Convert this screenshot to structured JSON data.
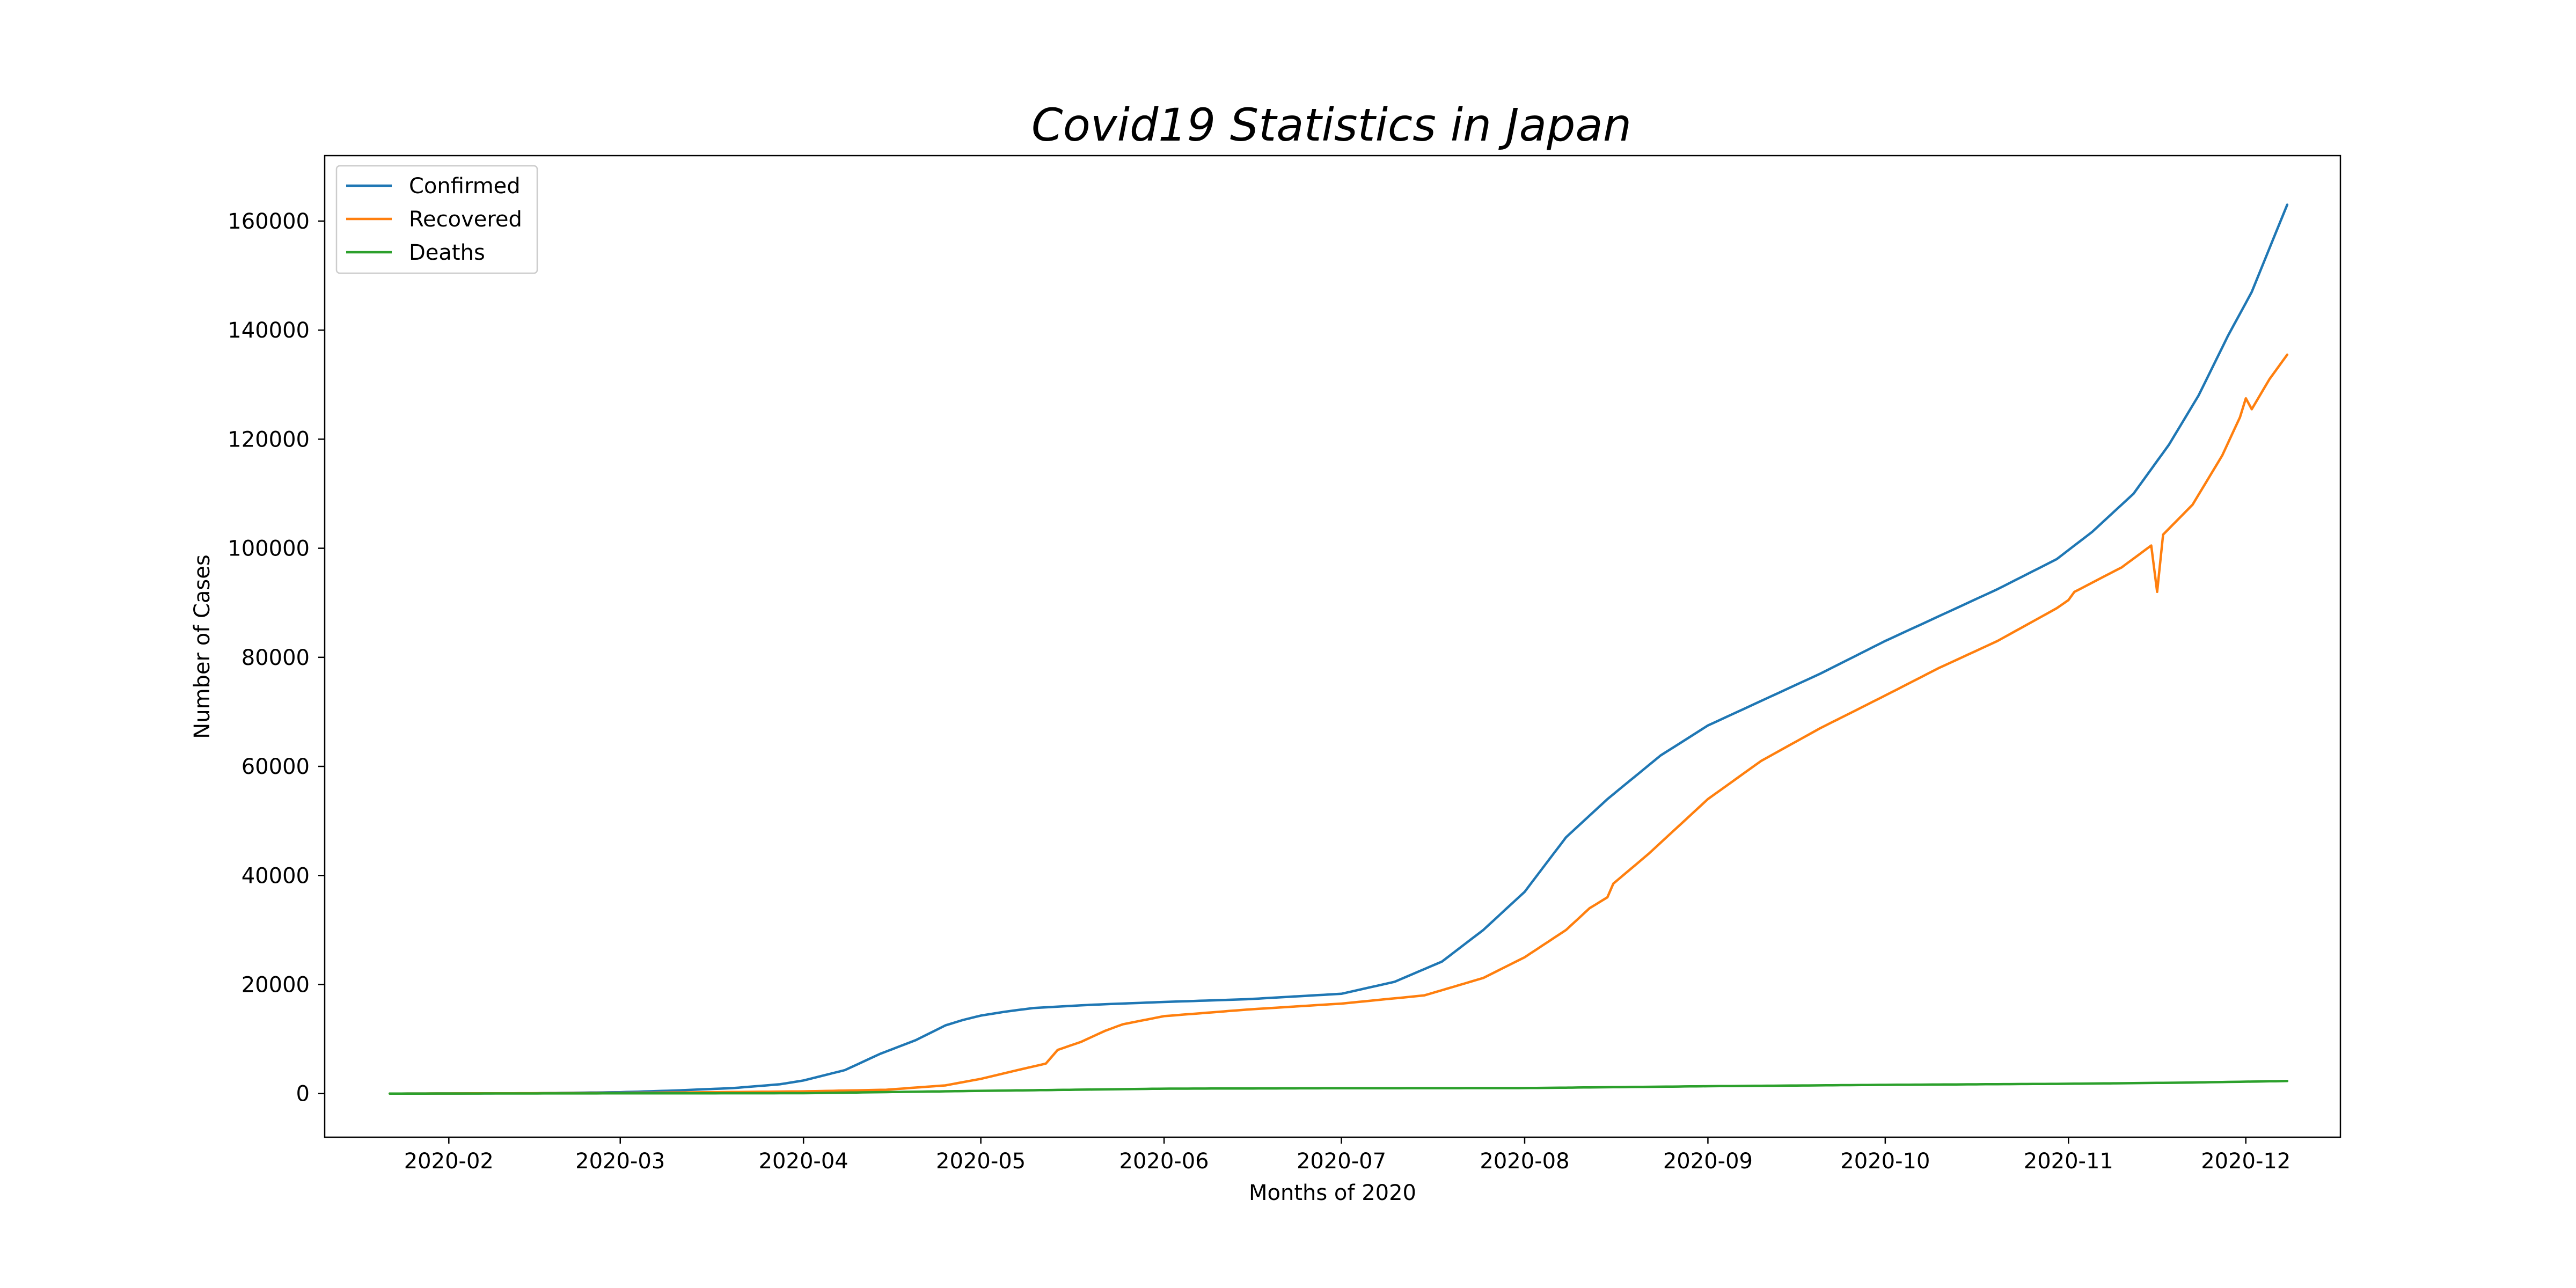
{
  "chart_data": {
    "type": "line",
    "title": "Covid19 Statistics in Japan",
    "xlabel": "Months of 2020",
    "ylabel": "Number of Cases",
    "xlim": [
      "2020-01-11",
      "2020-12-17"
    ],
    "ylim": [
      -8000,
      172000
    ],
    "x_ticks": [
      "2020-02",
      "2020-03",
      "2020-04",
      "2020-05",
      "2020-06",
      "2020-07",
      "2020-08",
      "2020-09",
      "2020-10",
      "2020-11",
      "2020-12"
    ],
    "y_ticks": [
      0,
      20000,
      40000,
      60000,
      80000,
      100000,
      120000,
      140000,
      160000
    ],
    "grid": false,
    "legend_position": "upper-left",
    "series": [
      {
        "name": "Confirmed",
        "color": "#1f77b4",
        "points": [
          [
            "2020-01-22",
            0
          ],
          [
            "2020-02-15",
            50
          ],
          [
            "2020-03-01",
            250
          ],
          [
            "2020-03-10",
            550
          ],
          [
            "2020-03-20",
            1000
          ],
          [
            "2020-03-28",
            1700
          ],
          [
            "2020-04-01",
            2400
          ],
          [
            "2020-04-08",
            4300
          ],
          [
            "2020-04-14",
            7300
          ],
          [
            "2020-04-20",
            9800
          ],
          [
            "2020-04-25",
            12500
          ],
          [
            "2020-04-28",
            13500
          ],
          [
            "2020-05-01",
            14300
          ],
          [
            "2020-05-05",
            15000
          ],
          [
            "2020-05-10",
            15700
          ],
          [
            "2020-05-20",
            16300
          ],
          [
            "2020-06-01",
            16800
          ],
          [
            "2020-06-15",
            17300
          ],
          [
            "2020-07-01",
            18300
          ],
          [
            "2020-07-10",
            20500
          ],
          [
            "2020-07-18",
            24200
          ],
          [
            "2020-07-25",
            30000
          ],
          [
            "2020-08-01",
            37000
          ],
          [
            "2020-08-08",
            47000
          ],
          [
            "2020-08-15",
            54000
          ],
          [
            "2020-08-24",
            62000
          ],
          [
            "2020-09-01",
            67500
          ],
          [
            "2020-09-10",
            72000
          ],
          [
            "2020-09-20",
            77000
          ],
          [
            "2020-10-01",
            83000
          ],
          [
            "2020-10-10",
            87500
          ],
          [
            "2020-10-20",
            92500
          ],
          [
            "2020-10-30",
            98000
          ],
          [
            "2020-11-05",
            103000
          ],
          [
            "2020-11-12",
            110000
          ],
          [
            "2020-11-18",
            119000
          ],
          [
            "2020-11-23",
            128000
          ],
          [
            "2020-11-28",
            139000
          ],
          [
            "2020-12-02",
            147000
          ],
          [
            "2020-12-05",
            155000
          ],
          [
            "2020-12-08",
            163000
          ]
        ]
      },
      {
        "name": "Recovered",
        "color": "#ff7f0e",
        "points": [
          [
            "2020-01-22",
            0
          ],
          [
            "2020-03-01",
            100
          ],
          [
            "2020-04-01",
            400
          ],
          [
            "2020-04-15",
            700
          ],
          [
            "2020-04-25",
            1500
          ],
          [
            "2020-05-01",
            2700
          ],
          [
            "2020-05-08",
            4500
          ],
          [
            "2020-05-12",
            5500
          ],
          [
            "2020-05-14",
            8000
          ],
          [
            "2020-05-18",
            9500
          ],
          [
            "2020-05-22",
            11500
          ],
          [
            "2020-05-25",
            12700
          ],
          [
            "2020-06-01",
            14200
          ],
          [
            "2020-06-15",
            15400
          ],
          [
            "2020-07-01",
            16500
          ],
          [
            "2020-07-15",
            18000
          ],
          [
            "2020-07-25",
            21200
          ],
          [
            "2020-08-01",
            25000
          ],
          [
            "2020-08-08",
            30000
          ],
          [
            "2020-08-12",
            34000
          ],
          [
            "2020-08-15",
            36000
          ],
          [
            "2020-08-16",
            38500
          ],
          [
            "2020-08-22",
            44000
          ],
          [
            "2020-09-01",
            54000
          ],
          [
            "2020-09-10",
            61000
          ],
          [
            "2020-09-20",
            67000
          ],
          [
            "2020-10-01",
            73000
          ],
          [
            "2020-10-10",
            78000
          ],
          [
            "2020-10-20",
            83000
          ],
          [
            "2020-10-30",
            89000
          ],
          [
            "2020-11-01",
            90500
          ],
          [
            "2020-11-02",
            92000
          ],
          [
            "2020-11-10",
            96500
          ],
          [
            "2020-11-15",
            100500
          ],
          [
            "2020-11-16",
            92000
          ],
          [
            "2020-11-17",
            102500
          ],
          [
            "2020-11-22",
            108000
          ],
          [
            "2020-11-27",
            117000
          ],
          [
            "2020-11-30",
            124000
          ],
          [
            "2020-12-01",
            127500
          ],
          [
            "2020-12-02",
            125500
          ],
          [
            "2020-12-05",
            131000
          ],
          [
            "2020-12-08",
            135500
          ]
        ]
      },
      {
        "name": "Deaths",
        "color": "#2ca02c",
        "points": [
          [
            "2020-01-22",
            0
          ],
          [
            "2020-04-01",
            70
          ],
          [
            "2020-05-01",
            500
          ],
          [
            "2020-06-01",
            900
          ],
          [
            "2020-07-01",
            980
          ],
          [
            "2020-08-01",
            1010
          ],
          [
            "2020-09-01",
            1350
          ],
          [
            "2020-10-01",
            1600
          ],
          [
            "2020-11-01",
            1800
          ],
          [
            "2020-11-20",
            2000
          ],
          [
            "2020-12-08",
            2300
          ]
        ]
      }
    ]
  }
}
